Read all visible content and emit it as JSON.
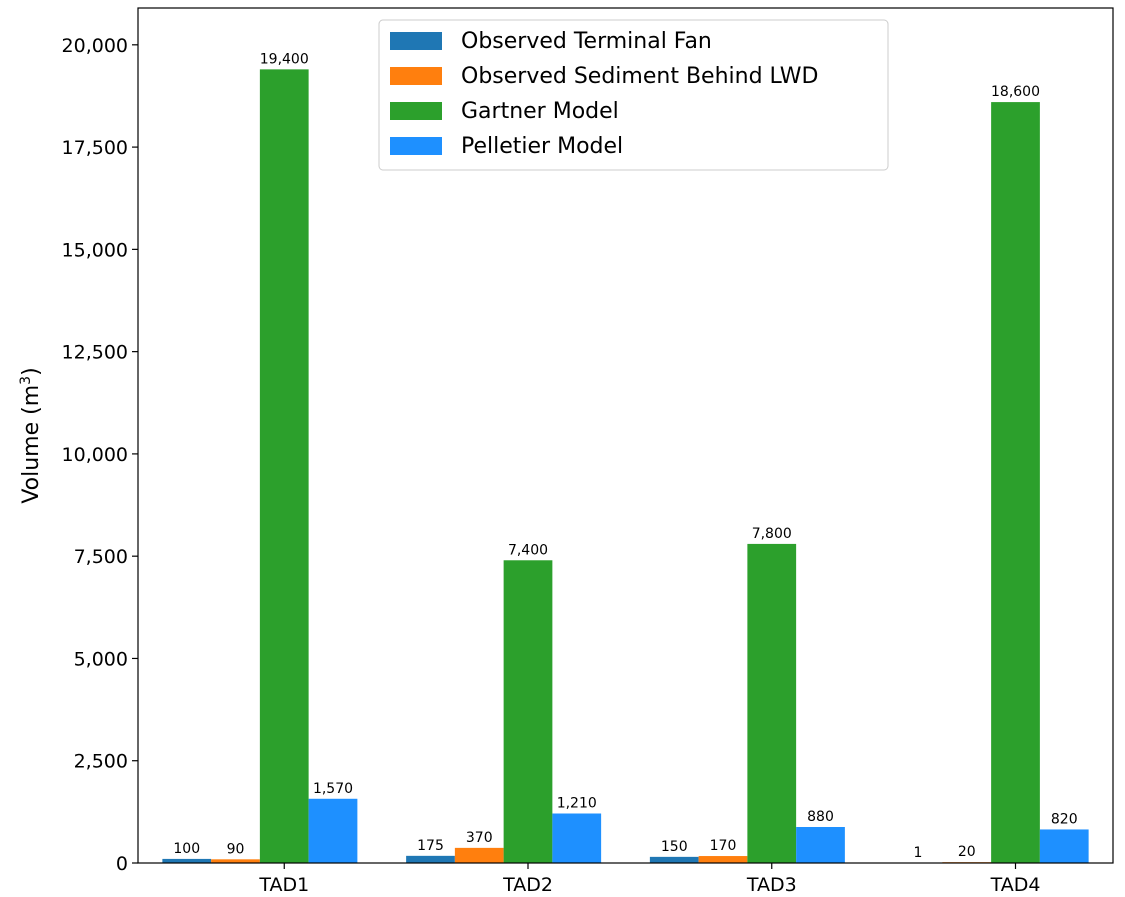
{
  "chart_data": {
    "type": "bar",
    "title": "",
    "xlabel": "",
    "ylabel": "Volume (m",
    "ylabel_sup": "3",
    "ylabel_close": ")",
    "categories": [
      "TAD1",
      "TAD2",
      "TAD3",
      "TAD4"
    ],
    "ylim": [
      0,
      20900
    ],
    "yticks": [
      0,
      2500,
      5000,
      7500,
      10000,
      12500,
      15000,
      17500,
      20000
    ],
    "ytick_labels": [
      "0",
      "2,500",
      "5,000",
      "7,500",
      "10,000",
      "12,500",
      "15,000",
      "17,500",
      "20,000"
    ],
    "grid": false,
    "legend_position": "top-center",
    "series": [
      {
        "name": "Observed Terminal Fan",
        "color": "#1f77b4",
        "values": [
          100,
          175,
          150,
          1
        ],
        "labels": [
          "100",
          "175",
          "150",
          "1"
        ]
      },
      {
        "name": "Observed Sediment Behind LWD",
        "color": "#ff7f0e",
        "values": [
          90,
          370,
          170,
          20
        ],
        "labels": [
          "90",
          "370",
          "170",
          "20"
        ]
      },
      {
        "name": "Gartner Model",
        "color": "#2ca02c",
        "values": [
          19400,
          7400,
          7800,
          18600
        ],
        "labels": [
          "19,400",
          "7,400",
          "7,800",
          "18,600"
        ]
      },
      {
        "name": "Pelletier Model",
        "color": "#1e90ff",
        "values": [
          1570,
          1210,
          880,
          820
        ],
        "labels": [
          "1,570",
          "1,210",
          "880",
          "820"
        ]
      }
    ]
  }
}
